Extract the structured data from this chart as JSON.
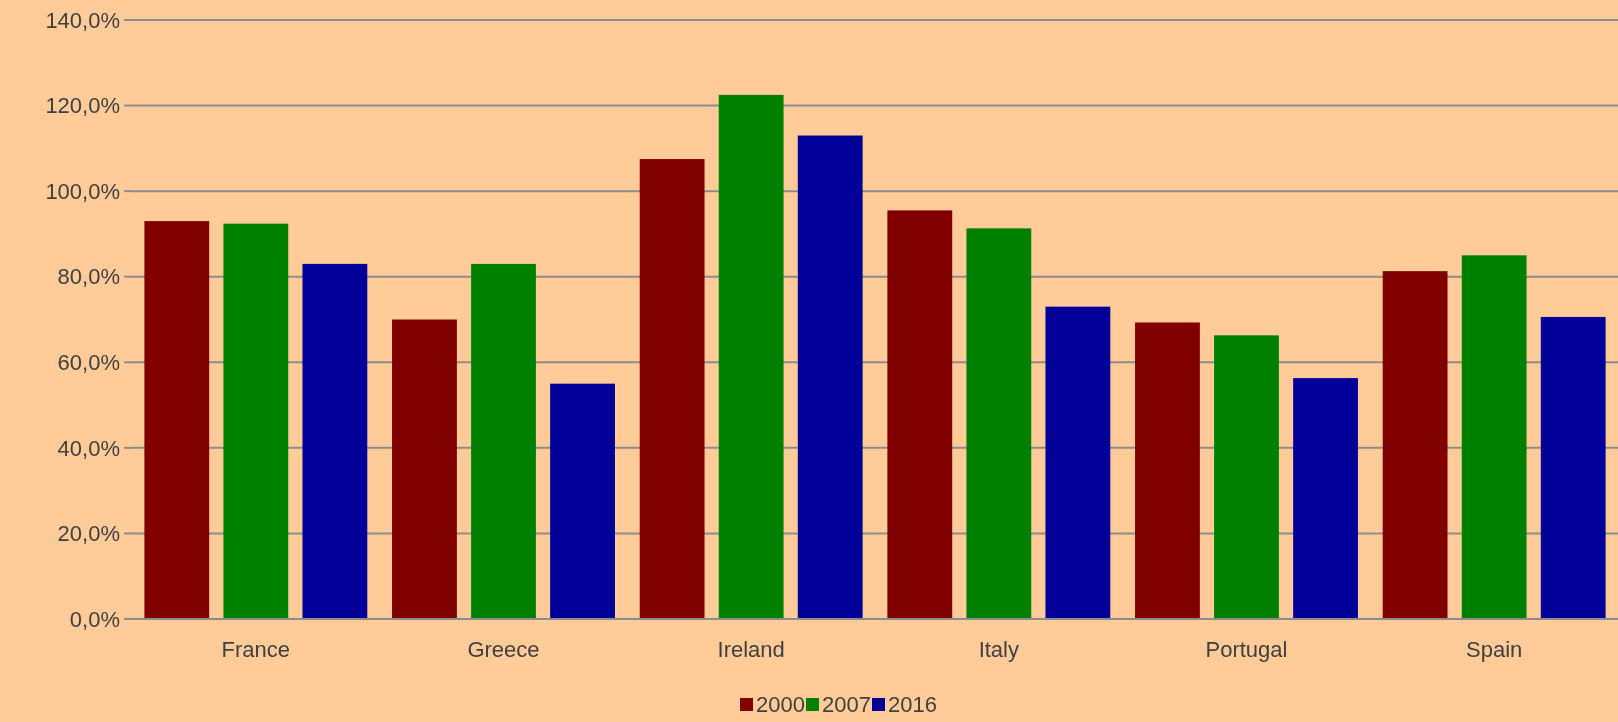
{
  "chart_data": {
    "type": "bar",
    "categories": [
      "France",
      "Greece",
      "Ireland",
      "Italy",
      "Portugal",
      "Spain"
    ],
    "series": [
      {
        "name": "2000",
        "color": "#800000",
        "values": [
          93,
          70,
          107.5,
          95.5,
          69.3,
          81.3
        ]
      },
      {
        "name": "2007",
        "color": "#008000",
        "values": [
          92.4,
          83,
          122.5,
          91.3,
          66.3,
          85
        ]
      },
      {
        "name": "2016",
        "color": "#000099",
        "values": [
          83,
          55,
          113,
          73,
          56.3,
          70.6
        ]
      }
    ],
    "ylim": [
      0,
      140
    ],
    "yticks": [
      {
        "value": 0,
        "label": "0,0%"
      },
      {
        "value": 20,
        "label": "20,0%"
      },
      {
        "value": 40,
        "label": "40,0%"
      },
      {
        "value": 60,
        "label": "60,0%"
      },
      {
        "value": 80,
        "label": "80,0%"
      },
      {
        "value": 100,
        "label": "100,0%"
      },
      {
        "value": 120,
        "label": "120,0%"
      },
      {
        "value": 140,
        "label": "140,0%"
      }
    ],
    "grid": "y",
    "legend": "bottom"
  }
}
